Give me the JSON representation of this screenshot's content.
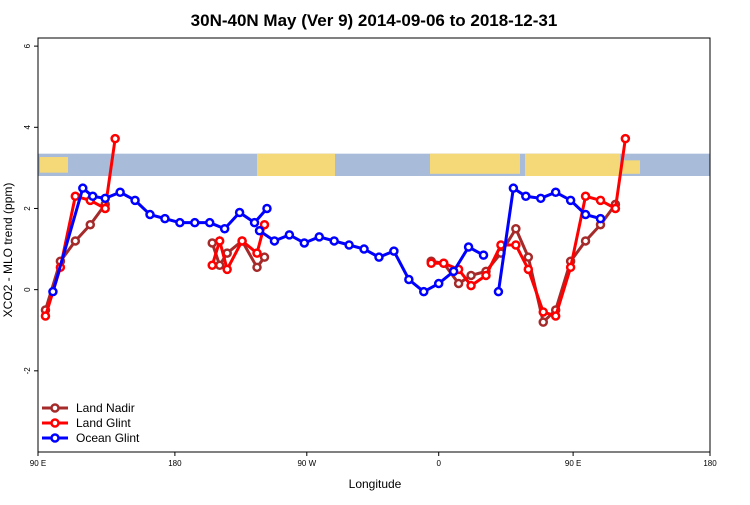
{
  "chart_data": {
    "type": "line",
    "title": "30N-40N May (Ver 9)   2014-09-06 to 2018-12-31",
    "xlabel": "Longitude",
    "ylabel": "XCO2 - MLO trend (ppm)",
    "xlim": [
      -90,
      180
    ],
    "ylim": [
      -4,
      6.2
    ],
    "x_ticks": [
      {
        "value": -90,
        "label": "90 E"
      },
      {
        "value": -35,
        "label": "180"
      },
      {
        "value": 18,
        "label": "90 W"
      },
      {
        "value": 71,
        "label": "0"
      },
      {
        "value": 125,
        "label": "90 E"
      },
      {
        "value": 180,
        "label": "180"
      }
    ],
    "y_ticks": [
      {
        "value": -2,
        "label": "-2"
      },
      {
        "value": 0,
        "label": "0"
      },
      {
        "value": 2,
        "label": "2"
      },
      {
        "value": 4,
        "label": "4"
      },
      {
        "value": 6,
        "label": "6"
      }
    ],
    "map_band": {
      "ymin": 2.8,
      "ymax": 3.35,
      "ocean_color": "#a8bcd9",
      "land_color": "#f5d878"
    },
    "legend_position": "bottom-left",
    "grid": false,
    "series": [
      {
        "name": "Land Nadir",
        "color": "#a52a2a",
        "segments": [
          [
            [
              -87,
              -0.5
            ],
            [
              -81,
              0.7
            ],
            [
              -75,
              1.2
            ],
            [
              -69,
              1.6
            ],
            [
              -63,
              2.1
            ]
          ],
          [
            [
              -20,
              1.15
            ],
            [
              -17,
              0.6
            ],
            [
              -14,
              0.9
            ],
            [
              -8,
              1.2
            ],
            [
              -2,
              0.55
            ],
            [
              1,
              0.8
            ]
          ],
          [
            [
              68,
              0.7
            ],
            [
              73,
              0.65
            ],
            [
              79,
              0.15
            ],
            [
              84,
              0.35
            ],
            [
              90,
              0.45
            ],
            [
              96,
              0.9
            ],
            [
              102,
              1.5
            ],
            [
              107,
              0.8
            ],
            [
              113,
              -0.8
            ],
            [
              118,
              -0.5
            ],
            [
              124,
              0.7
            ],
            [
              130,
              1.2
            ],
            [
              136,
              1.6
            ],
            [
              142,
              2.1
            ]
          ]
        ]
      },
      {
        "name": "Land Glint",
        "color": "#ff0000",
        "segments": [
          [
            [
              -87,
              -0.65
            ],
            [
              -81,
              0.55
            ],
            [
              -75,
              2.3
            ],
            [
              -69,
              2.2
            ],
            [
              -63,
              2.0
            ],
            [
              -59,
              3.72
            ]
          ],
          [
            [
              -20,
              0.6
            ],
            [
              -17,
              1.2
            ],
            [
              -14,
              0.5
            ],
            [
              -8,
              1.2
            ],
            [
              -2,
              0.9
            ],
            [
              1,
              1.6
            ]
          ],
          [
            [
              68,
              0.65
            ],
            [
              73,
              0.65
            ],
            [
              79,
              0.5
            ],
            [
              84,
              0.1
            ],
            [
              90,
              0.35
            ],
            [
              96,
              1.1
            ],
            [
              102,
              1.1
            ],
            [
              107,
              0.5
            ],
            [
              113,
              -0.55
            ],
            [
              118,
              -0.65
            ],
            [
              124,
              0.55
            ],
            [
              130,
              2.3
            ],
            [
              136,
              2.2
            ],
            [
              142,
              2.0
            ],
            [
              146,
              3.72
            ]
          ]
        ]
      },
      {
        "name": "Ocean Glint",
        "color": "#0000ff",
        "segments": [
          [
            [
              -84,
              -0.05
            ],
            [
              -72,
              2.5
            ],
            [
              -68,
              2.3
            ],
            [
              -63,
              2.25
            ],
            [
              -57,
              2.4
            ],
            [
              -51,
              2.2
            ],
            [
              -45,
              1.85
            ],
            [
              -39,
              1.75
            ],
            [
              -33,
              1.65
            ],
            [
              -27,
              1.65
            ],
            [
              -21,
              1.65
            ],
            [
              -15,
              1.5
            ],
            [
              -9,
              1.9
            ],
            [
              -3,
              1.65
            ],
            [
              2,
              2.0
            ]
          ],
          [
            [
              -1,
              1.45
            ],
            [
              5,
              1.2
            ],
            [
              11,
              1.35
            ],
            [
              17,
              1.15
            ],
            [
              23,
              1.3
            ],
            [
              29,
              1.2
            ],
            [
              35,
              1.1
            ],
            [
              41,
              1.0
            ],
            [
              47,
              0.8
            ],
            [
              53,
              0.95
            ],
            [
              59,
              0.25
            ],
            [
              65,
              -0.05
            ],
            [
              71,
              0.15
            ],
            [
              77,
              0.45
            ],
            [
              83,
              1.05
            ],
            [
              89,
              0.85
            ]
          ],
          [
            [
              95,
              -0.05
            ],
            [
              101,
              2.5
            ],
            [
              106,
              2.3
            ],
            [
              112,
              2.25
            ],
            [
              118,
              2.4
            ],
            [
              124,
              2.2
            ],
            [
              130,
              1.85
            ],
            [
              136,
              1.75
            ]
          ]
        ]
      }
    ]
  }
}
